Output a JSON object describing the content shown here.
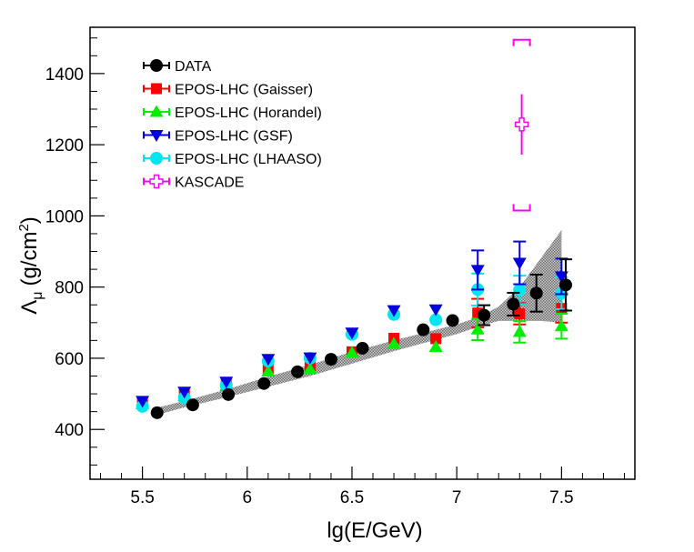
{
  "chart_data": {
    "type": "scatter",
    "title": "",
    "xlabel": "lg(E/GeV)",
    "ylabel_main": "Λ",
    "ylabel_sub": "μ",
    "ylabel_unit": "(g/cm",
    "ylabel_sup": "2",
    "ylabel_close": ")",
    "xlim": [
      5.25,
      7.85
    ],
    "ylim": [
      260,
      1530
    ],
    "xticks": [
      {
        "v": 5.5,
        "label": "5.5"
      },
      {
        "v": 6.0,
        "label": "6"
      },
      {
        "v": 6.5,
        "label": "6.5"
      },
      {
        "v": 7.0,
        "label": "7"
      },
      {
        "v": 7.5,
        "label": "7.5"
      }
    ],
    "yticks": [
      {
        "v": 400,
        "label": "400"
      },
      {
        "v": 600,
        "label": "600"
      },
      {
        "v": 800,
        "label": "800"
      },
      {
        "v": 1000,
        "label": "1000"
      },
      {
        "v": 1200,
        "label": "1200"
      },
      {
        "v": 1400,
        "label": "1400"
      }
    ],
    "grid": false,
    "legend_position": "top-left",
    "band": {
      "upper": [
        [
          5.55,
          458
        ],
        [
          5.7,
          480
        ],
        [
          5.9,
          512
        ],
        [
          6.1,
          548
        ],
        [
          6.3,
          582
        ],
        [
          6.5,
          618
        ],
        [
          6.7,
          650
        ],
        [
          6.9,
          680
        ],
        [
          7.0,
          695
        ],
        [
          7.1,
          715
        ],
        [
          7.2,
          745
        ],
        [
          7.3,
          800
        ],
        [
          7.4,
          880
        ],
        [
          7.5,
          960
        ]
      ],
      "lower": [
        [
          5.55,
          438
        ],
        [
          5.7,
          462
        ],
        [
          5.9,
          490
        ],
        [
          6.1,
          520
        ],
        [
          6.3,
          550
        ],
        [
          6.5,
          585
        ],
        [
          6.7,
          620
        ],
        [
          6.9,
          652
        ],
        [
          7.0,
          668
        ],
        [
          7.1,
          688
        ],
        [
          7.2,
          705
        ],
        [
          7.3,
          705
        ],
        [
          7.4,
          705
        ],
        [
          7.5,
          700
        ]
      ]
    },
    "series": [
      {
        "name": "DATA",
        "marker": "circle",
        "color": "#000000",
        "points": [
          {
            "x": 5.57,
            "y": 447
          },
          {
            "x": 5.74,
            "y": 469
          },
          {
            "x": 5.91,
            "y": 498
          },
          {
            "x": 6.08,
            "y": 529
          },
          {
            "x": 6.24,
            "y": 562
          },
          {
            "x": 6.4,
            "y": 597
          },
          {
            "x": 6.55,
            "y": 628
          },
          {
            "x": 6.84,
            "y": 680
          },
          {
            "x": 6.98,
            "y": 706
          },
          {
            "x": 7.13,
            "y": 721,
            "err": 28
          },
          {
            "x": 7.27,
            "y": 752,
            "err": 32
          },
          {
            "x": 7.38,
            "y": 783,
            "err": 52
          },
          {
            "x": 7.52,
            "y": 806,
            "err": 72
          }
        ]
      },
      {
        "name": "EPOS-LHC (Gaisser)",
        "marker": "square",
        "color": "#ff0000",
        "points": [
          {
            "x": 5.5,
            "y": 476
          },
          {
            "x": 5.7,
            "y": 498
          },
          {
            "x": 5.9,
            "y": 527
          },
          {
            "x": 6.1,
            "y": 568
          },
          {
            "x": 6.3,
            "y": 576
          },
          {
            "x": 6.5,
            "y": 618
          },
          {
            "x": 6.7,
            "y": 656
          },
          {
            "x": 6.9,
            "y": 655
          },
          {
            "x": 7.1,
            "y": 727,
            "err": 40
          },
          {
            "x": 7.3,
            "y": 725,
            "err": 30
          },
          {
            "x": 7.5,
            "y": 740,
            "err": 40
          }
        ]
      },
      {
        "name": "EPOS-LHC (Horandel)",
        "marker": "triangle-up",
        "color": "#00ee00",
        "points": [
          {
            "x": 5.5,
            "y": 471
          },
          {
            "x": 5.7,
            "y": 493
          },
          {
            "x": 5.9,
            "y": 522
          },
          {
            "x": 6.1,
            "y": 563
          },
          {
            "x": 6.3,
            "y": 570
          },
          {
            "x": 6.5,
            "y": 616
          },
          {
            "x": 6.7,
            "y": 641
          },
          {
            "x": 6.9,
            "y": 632
          },
          {
            "x": 7.1,
            "y": 681,
            "err": 30
          },
          {
            "x": 7.3,
            "y": 674,
            "err": 30
          },
          {
            "x": 7.5,
            "y": 690,
            "err": 35
          }
        ]
      },
      {
        "name": "EPOS-LHC (GSF)",
        "marker": "triangle-down",
        "color": "#0000dd",
        "points": [
          {
            "x": 5.5,
            "y": 480
          },
          {
            "x": 5.7,
            "y": 506
          },
          {
            "x": 5.9,
            "y": 534
          },
          {
            "x": 6.1,
            "y": 598
          },
          {
            "x": 6.3,
            "y": 602
          },
          {
            "x": 6.5,
            "y": 672
          },
          {
            "x": 6.7,
            "y": 735
          },
          {
            "x": 6.9,
            "y": 737
          },
          {
            "x": 7.1,
            "y": 848,
            "err": 55
          },
          {
            "x": 7.3,
            "y": 868,
            "err": 60
          },
          {
            "x": 7.5,
            "y": 830,
            "err": 50
          }
        ]
      },
      {
        "name": "EPOS-LHC (LHAASO)",
        "marker": "circle",
        "color": "#00e5ee",
        "points": [
          {
            "x": 5.5,
            "y": 465
          },
          {
            "x": 5.7,
            "y": 489
          },
          {
            "x": 5.9,
            "y": 524
          },
          {
            "x": 6.1,
            "y": 592
          },
          {
            "x": 6.3,
            "y": 600
          },
          {
            "x": 6.5,
            "y": 667
          },
          {
            "x": 6.7,
            "y": 723
          },
          {
            "x": 6.9,
            "y": 708
          },
          {
            "x": 7.1,
            "y": 793,
            "err": 45
          },
          {
            "x": 7.3,
            "y": 792,
            "err": 40
          },
          {
            "x": 7.5,
            "y": 783,
            "err": 45
          }
        ]
      },
      {
        "name": "KASCADE",
        "marker": "open-cross",
        "color": "#ff00ff",
        "points": [
          {
            "x": 7.31,
            "y": 1257,
            "err": 85,
            "syst_low": 1015,
            "syst_high": 1495
          }
        ]
      }
    ]
  }
}
